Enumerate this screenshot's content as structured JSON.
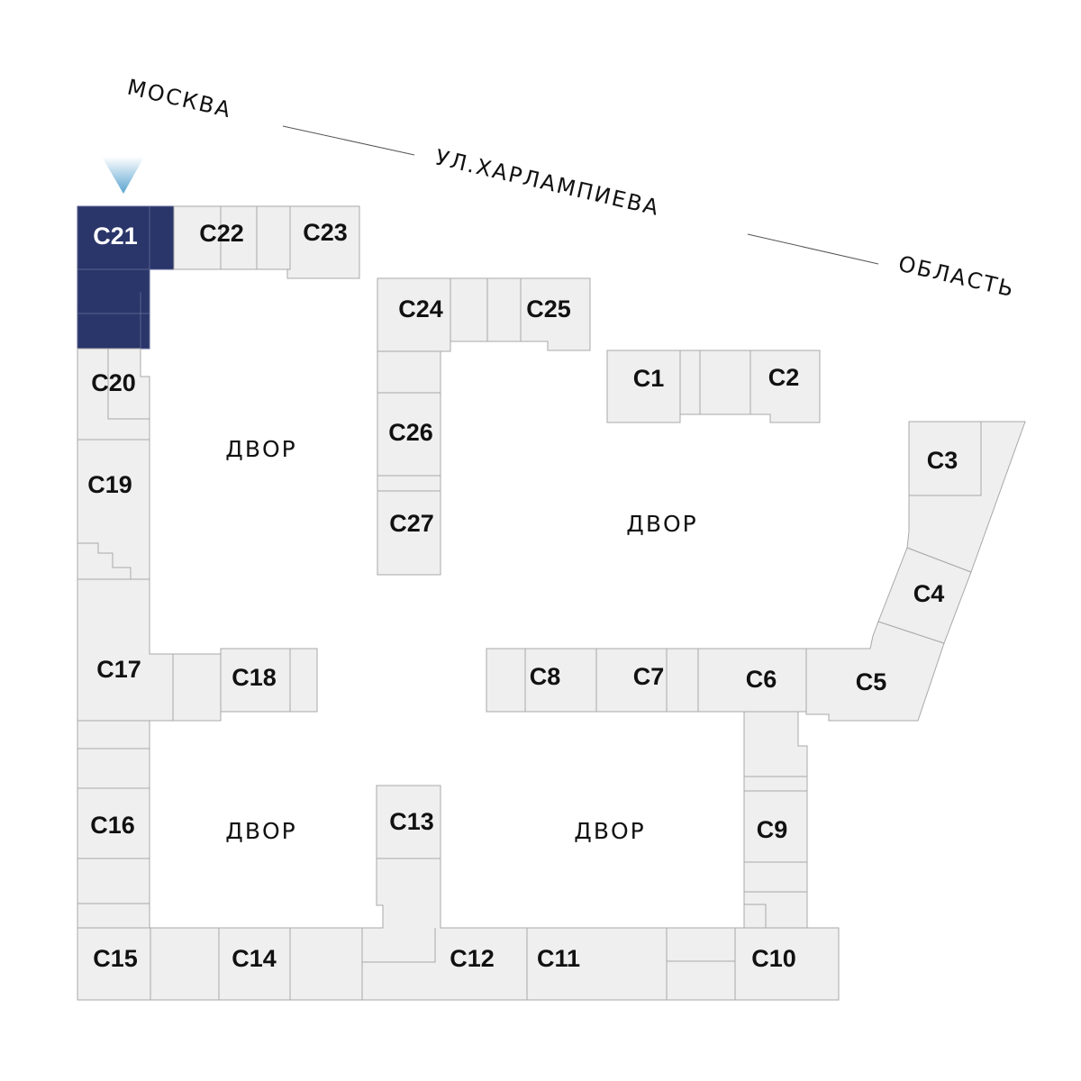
{
  "streets": {
    "part1": "МОСКВА",
    "part2": "УЛ.ХАРЛАМПИЕВА",
    "part3": "ОБЛАСТЬ"
  },
  "courtyards": [
    "ДВОР",
    "ДВОР",
    "ДВОР",
    "ДВОР"
  ],
  "selected_unit": "C21",
  "units": {
    "c1": "C1",
    "c2": "C2",
    "c3": "C3",
    "c4": "C4",
    "c5": "C5",
    "c6": "C6",
    "c7": "C7",
    "c8": "C8",
    "c9": "C9",
    "c10": "C10",
    "c11": "C11",
    "c12": "C12",
    "c13": "C13",
    "c14": "C14",
    "c15": "C15",
    "c16": "C16",
    "c17": "C17",
    "c18": "C18",
    "c19": "C19",
    "c20": "C20",
    "c21": "C21",
    "c22": "C22",
    "c23": "C23",
    "c24": "C24",
    "c25": "C25",
    "c26": "C26",
    "c27": "C27"
  },
  "colors": {
    "selected": "#2a3569",
    "unit_fill": "#efefef",
    "unit_stroke": "#a8a8a8",
    "marker": "#6aaed6"
  },
  "icons": {
    "location_marker": "triangle-down-marker-icon"
  }
}
